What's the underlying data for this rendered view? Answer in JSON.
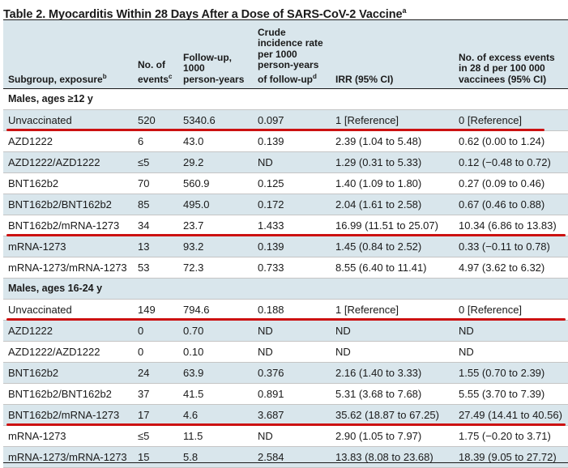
{
  "table": {
    "title": "Table 2. Myocarditis Within 28 Days After a Dose of SARS-CoV-2 Vaccine",
    "title_sup": "a",
    "headers": {
      "subgroup": "Subgroup, exposure",
      "subgroup_sup": "b",
      "events_l1": "No. of",
      "events_l2": "events",
      "events_sup": "c",
      "followup_l1": "Follow-up,",
      "followup_l2": "1000",
      "followup_l3": "person-years",
      "crude_l1": "Crude",
      "crude_l2": "incidence rate",
      "crude_l3": "per 1000",
      "crude_l4": "person-years",
      "crude_l5": "of follow-up",
      "crude_sup": "d",
      "irr": "IRR (95% CI)",
      "excess_l1": "No. of excess events",
      "excess_l2": "in 28 d per 100 000",
      "excess_l3": "vaccinees (95% CI)"
    },
    "rows": [
      {
        "section": "Males, ages ≥12 y"
      },
      {
        "exposure": "Unvaccinated",
        "events": "520",
        "followup": "5340.6",
        "crude": "0.097",
        "irr": "1 [Reference]",
        "excess": "0 [Reference]"
      },
      {
        "exposure": "AZD1222",
        "events": "6",
        "followup": "43.0",
        "crude": "0.139",
        "irr": "2.39 (1.04 to 5.48)",
        "excess": "0.62 (0.00 to 1.24)"
      },
      {
        "exposure": "AZD1222/AZD1222",
        "events": "≤5",
        "followup": "29.2",
        "crude": "ND",
        "irr": "1.29 (0.31 to 5.33)",
        "excess": "0.12 (−0.48 to 0.72)"
      },
      {
        "exposure": "BNT162b2",
        "events": "70",
        "followup": "560.9",
        "crude": "0.125",
        "irr": "1.40 (1.09 to 1.80)",
        "excess": "0.27 (0.09 to 0.46)"
      },
      {
        "exposure": "BNT162b2/BNT162b2",
        "events": "85",
        "followup": "495.0",
        "crude": "0.172",
        "irr": "2.04 (1.61 to 2.58)",
        "excess": "0.67 (0.46 to 0.88)"
      },
      {
        "exposure": "BNT162b2/mRNA-1273",
        "events": "34",
        "followup": "23.7",
        "crude": "1.433",
        "irr": "16.99 (11.51 to 25.07)",
        "excess": "10.34 (6.86 to 13.83)"
      },
      {
        "exposure": "mRNA-1273",
        "events": "13",
        "followup": "93.2",
        "crude": "0.139",
        "irr": "1.45 (0.84 to 2.52)",
        "excess": "0.33 (−0.11 to 0.78)"
      },
      {
        "exposure": "mRNA-1273/mRNA-1273",
        "events": "53",
        "followup": "72.3",
        "crude": "0.733",
        "irr": "8.55 (6.40 to 11.41)",
        "excess": "4.97 (3.62 to 6.32)"
      },
      {
        "section": "Males, ages 16-24 y"
      },
      {
        "exposure": "Unvaccinated",
        "events": "149",
        "followup": "794.6",
        "crude": "0.188",
        "irr": "1 [Reference]",
        "excess": "0 [Reference]"
      },
      {
        "exposure": "AZD1222",
        "events": "0",
        "followup": "0.70",
        "crude": "ND",
        "irr": "ND",
        "excess": "ND"
      },
      {
        "exposure": "AZD1222/AZD1222",
        "events": "0",
        "followup": "0.10",
        "crude": "ND",
        "irr": "ND",
        "excess": "ND"
      },
      {
        "exposure": "BNT162b2",
        "events": "24",
        "followup": "63.9",
        "crude": "0.376",
        "irr": "2.16 (1.40 to 3.33)",
        "excess": "1.55 (0.70 to 2.39)"
      },
      {
        "exposure": "BNT162b2/BNT162b2",
        "events": "37",
        "followup": "41.5",
        "crude": "0.891",
        "irr": "5.31 (3.68 to 7.68)",
        "excess": "5.55 (3.70 to 7.39)"
      },
      {
        "exposure": "BNT162b2/mRNA-1273",
        "events": "17",
        "followup": "4.6",
        "crude": "3.687",
        "irr": "35.62 (18.87 to 67.25)",
        "excess": "27.49 (14.41 to 40.56)"
      },
      {
        "exposure": "mRNA-1273",
        "events": "≤5",
        "followup": "11.5",
        "crude": "ND",
        "irr": "2.90 (1.05 to 7.97)",
        "excess": "1.75 (−0.20 to 3.71)"
      },
      {
        "exposure": "mRNA-1273/mRNA-1273",
        "events": "15",
        "followup": "5.8",
        "crude": "2.584",
        "irr": "13.83 (8.08 to 23.68)",
        "excess": "18.39 (9.05 to 27.72)"
      }
    ]
  },
  "annotations": {
    "highlight_color": "#cc1111",
    "underlined_rows": [
      "Unvaccinated",
      "BNT162b2/mRNA-1273",
      "Unvaccinated",
      "BNT162b2/mRNA-1273"
    ]
  }
}
